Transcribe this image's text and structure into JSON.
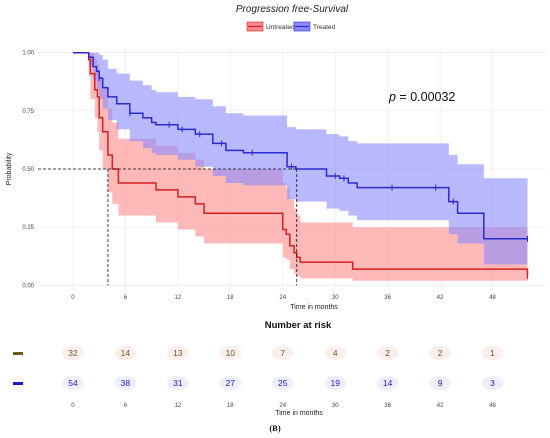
{
  "chart_data": {
    "type": "line",
    "title": "Progression free-Survival",
    "xlabel": "Time in months",
    "ylabel": "Probability",
    "xlim": [
      -4,
      54
    ],
    "ylim": [
      -0.02,
      1.02
    ],
    "x_ticks": [
      0,
      6,
      12,
      18,
      24,
      30,
      36,
      42,
      48
    ],
    "y_ticks": [
      0.0,
      0.25,
      0.5,
      0.75,
      1.0
    ],
    "y_tick_labels": [
      "0.00",
      "0.25",
      "0.50",
      "0.75",
      "1.00"
    ],
    "grid": true,
    "legend_position": "top",
    "annotation": "p = 0.00032",
    "median_line": {
      "y": 0.5,
      "x": [
        4.0,
        25.6
      ]
    },
    "series": [
      {
        "name": "Untreated",
        "color": "#d62020",
        "band_color": "#ff8a8a",
        "x": [
          0,
          1.8,
          2.0,
          2.5,
          2.8,
          3.0,
          3.4,
          4.0,
          4.5,
          5.2,
          9.5,
          11.0,
          12.0,
          14.0,
          15.0,
          24.0,
          24.4,
          24.8,
          25.3,
          25.6,
          26.0,
          32.0,
          33.5,
          52
        ],
        "y": [
          1.0,
          0.97,
          0.91,
          0.84,
          0.81,
          0.72,
          0.66,
          0.56,
          0.5,
          0.44,
          0.41,
          0.41,
          0.38,
          0.35,
          0.31,
          0.24,
          0.22,
          0.17,
          0.14,
          0.12,
          0.1,
          0.07,
          0.07,
          0.04
        ],
        "upper": [
          1.0,
          1.0,
          1.0,
          0.97,
          0.95,
          0.9,
          0.85,
          0.76,
          0.7,
          0.63,
          0.6,
          0.6,
          0.57,
          0.54,
          0.5,
          0.44,
          0.42,
          0.37,
          0.33,
          0.3,
          0.27,
          0.25,
          0.25,
          0.22
        ],
        "lower": [
          1.0,
          0.9,
          0.8,
          0.72,
          0.66,
          0.58,
          0.5,
          0.4,
          0.35,
          0.3,
          0.27,
          0.27,
          0.24,
          0.21,
          0.18,
          0.12,
          0.11,
          0.07,
          0.05,
          0.04,
          0.03,
          0.02,
          0.02,
          0.01
        ],
        "censor_x": [
          52
        ],
        "censor_y": [
          0.04
        ],
        "number_at_risk": [
          32,
          14,
          13,
          10,
          7,
          4,
          2,
          2,
          1
        ]
      },
      {
        "name": "Treated",
        "color": "#2a2ad0",
        "band_color": "#8a8aff",
        "x": [
          0,
          1.8,
          2.3,
          2.7,
          3.0,
          3.4,
          4.0,
          5.0,
          6.5,
          8.0,
          9.0,
          9.5,
          11.0,
          12.0,
          14.0,
          16.0,
          17.5,
          19.5,
          22.5,
          24.5,
          25.5,
          29.0,
          30.5,
          31.5,
          32.5,
          43.0,
          44.0,
          47.0,
          52
        ],
        "y": [
          1.0,
          0.98,
          0.94,
          0.92,
          0.89,
          0.85,
          0.81,
          0.78,
          0.74,
          0.72,
          0.7,
          0.69,
          0.69,
          0.67,
          0.65,
          0.61,
          0.58,
          0.57,
          0.57,
          0.51,
          0.5,
          0.47,
          0.46,
          0.44,
          0.42,
          0.36,
          0.31,
          0.2,
          0.2
        ],
        "upper": [
          1.0,
          1.0,
          1.0,
          1.0,
          0.99,
          0.97,
          0.93,
          0.91,
          0.88,
          0.86,
          0.84,
          0.83,
          0.83,
          0.81,
          0.8,
          0.77,
          0.74,
          0.73,
          0.73,
          0.68,
          0.67,
          0.65,
          0.64,
          0.62,
          0.61,
          0.56,
          0.52,
          0.46,
          0.46
        ],
        "lower": [
          1.0,
          0.94,
          0.88,
          0.84,
          0.8,
          0.76,
          0.71,
          0.67,
          0.62,
          0.59,
          0.57,
          0.56,
          0.56,
          0.54,
          0.51,
          0.47,
          0.44,
          0.43,
          0.43,
          0.37,
          0.36,
          0.33,
          0.32,
          0.3,
          0.28,
          0.22,
          0.18,
          0.09,
          0.09
        ],
        "censor_x": [
          3.0,
          6.5,
          11.0,
          12.5,
          14.5,
          17.0,
          20.5,
          25.0,
          30.0,
          31.0,
          36.5,
          41.5,
          43.5,
          52
        ],
        "censor_y": [
          0.89,
          0.74,
          0.69,
          0.67,
          0.65,
          0.61,
          0.57,
          0.51,
          0.47,
          0.46,
          0.42,
          0.42,
          0.36,
          0.2
        ],
        "number_at_risk": [
          54,
          38,
          31,
          27,
          25,
          19,
          14,
          9,
          3
        ]
      }
    ]
  },
  "risk_table": {
    "title": "Number at risk",
    "xlabel": "Time in months",
    "x_ticks": [
      0,
      6,
      12,
      18,
      24,
      30,
      36,
      42,
      48
    ]
  },
  "caption": "(B)"
}
